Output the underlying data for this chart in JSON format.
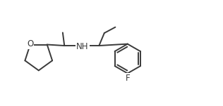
{
  "background_color": "#ffffff",
  "line_color": "#3a3a3a",
  "text_color": "#3a3a3a",
  "label_O": "O",
  "label_NH": "NH",
  "label_F": "F",
  "line_width": 1.4,
  "font_size": 8.5,
  "figsize": [
    3.16,
    1.51
  ],
  "dpi": 100,
  "xlim": [
    0,
    10
  ],
  "ylim": [
    0,
    5
  ]
}
